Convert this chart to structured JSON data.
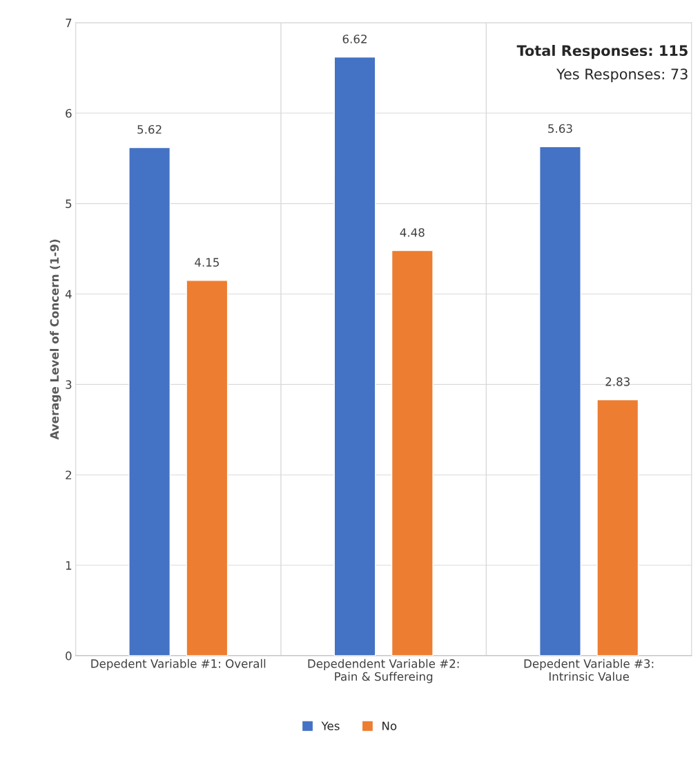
{
  "chart_data": {
    "type": "bar",
    "ylabel": "Average Level of Concern (1-9)",
    "categories": [
      "Depedent Variable #1: Overall",
      "Depedendent Variable #2:\nPain & Suffereing",
      "Depedent Variable #3:\nIntrinsic Value"
    ],
    "series": [
      {
        "name": "Yes",
        "color": "#4472c4",
        "values": [
          5.62,
          6.62,
          5.63
        ]
      },
      {
        "name": "No",
        "color": "#ed7d31",
        "values": [
          4.15,
          4.48,
          2.83
        ]
      }
    ],
    "ylim": [
      0,
      7
    ],
    "yticks": [
      0,
      1,
      2,
      3,
      4,
      5,
      6,
      7
    ],
    "grid": true,
    "legend": "bottom",
    "data_labels": true,
    "annotations": [
      "Total Responses: 115",
      "Yes Responses: 73"
    ]
  }
}
